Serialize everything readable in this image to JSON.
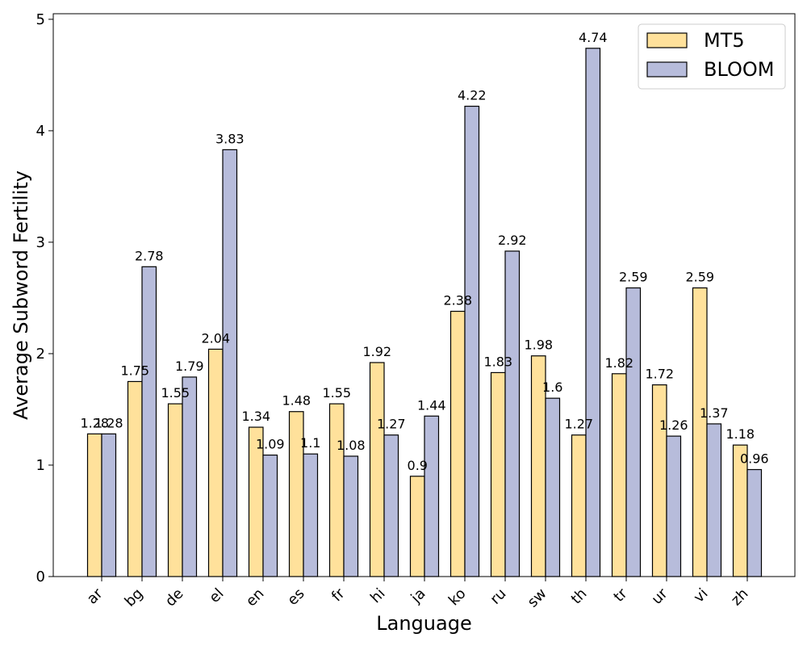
{
  "chart_data": {
    "type": "bar",
    "xlabel": "Language",
    "ylabel": "Average Subword Fertility",
    "categories": [
      "ar",
      "bg",
      "de",
      "el",
      "en",
      "es",
      "fr",
      "hi",
      "ja",
      "ko",
      "ru",
      "sw",
      "th",
      "tr",
      "ur",
      "vi",
      "zh"
    ],
    "series": [
      {
        "name": "MT5",
        "color": "#FFE19B",
        "values": [
          1.28,
          1.75,
          1.55,
          2.04,
          1.34,
          1.48,
          1.55,
          1.92,
          0.9,
          2.38,
          1.83,
          1.98,
          1.27,
          1.82,
          1.72,
          2.59,
          1.18
        ]
      },
      {
        "name": "BLOOM",
        "color": "#B7BCDB",
        "values": [
          1.28,
          2.78,
          1.79,
          3.83,
          1.09,
          1.1,
          1.08,
          1.27,
          1.44,
          4.22,
          2.92,
          1.6,
          4.74,
          2.59,
          1.26,
          1.37,
          0.96
        ]
      }
    ],
    "ylim": [
      0,
      5.05
    ],
    "yticks": [
      0,
      1,
      2,
      3,
      4,
      5
    ],
    "grid": false,
    "legend_position": "top-right"
  }
}
